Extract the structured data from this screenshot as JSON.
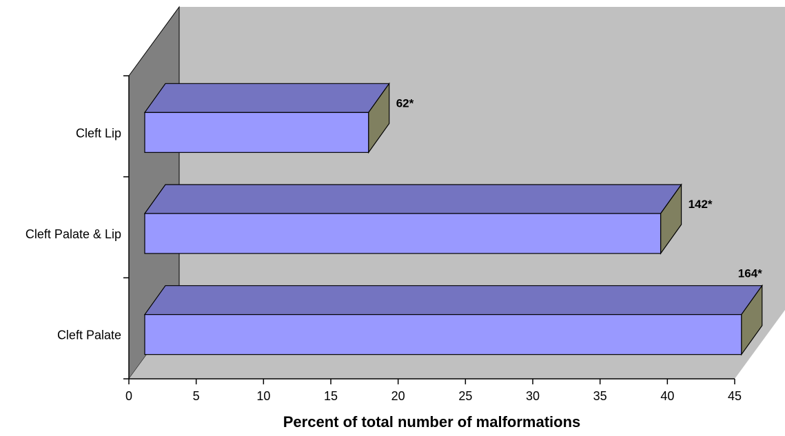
{
  "chart_data": {
    "type": "bar",
    "orientation": "horizontal",
    "style": "3d",
    "categories": [
      "Cleft Palate",
      "Cleft Palate & Lip",
      "Cleft Lip"
    ],
    "values": [
      45.5,
      39.5,
      17.8
    ],
    "data_labels": [
      "164*",
      "142*",
      "62*"
    ],
    "xlabel": "Percent of total number of malformations",
    "ylabel": "",
    "xlim": [
      0,
      45
    ],
    "x_ticks": [
      "0",
      "5",
      "10",
      "15",
      "20",
      "25",
      "30",
      "35",
      "40",
      "45"
    ],
    "grid": false,
    "legend": false,
    "colors": {
      "bar_front": "#9999ff",
      "bar_top": "#7474c1",
      "bar_side": "#808060",
      "wall_back": "#c0c0c0",
      "wall_side": "#808080",
      "floor": "#c0c0c0"
    }
  }
}
